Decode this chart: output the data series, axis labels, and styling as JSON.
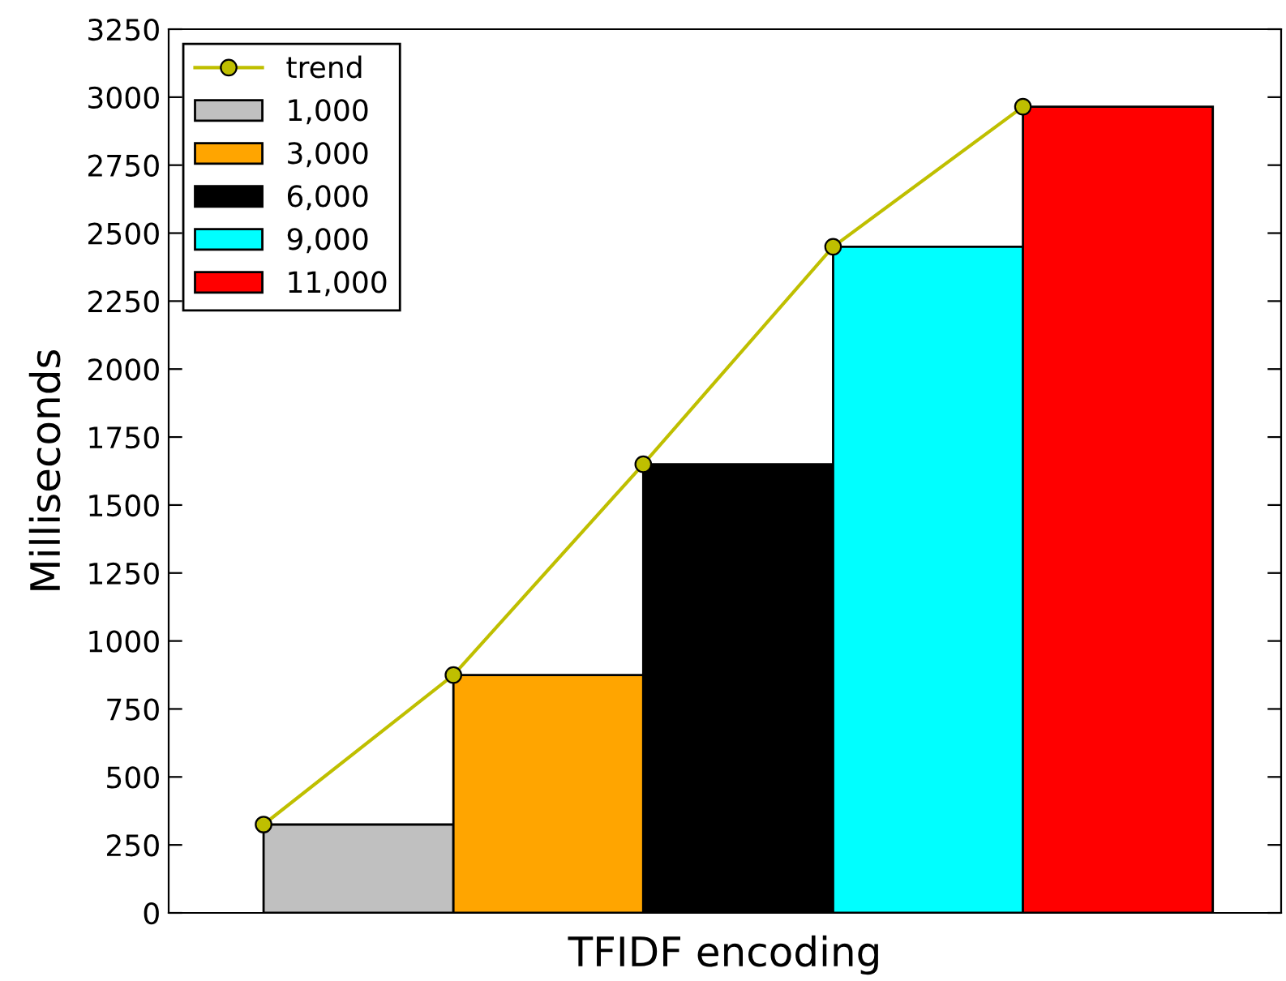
{
  "chart_data": {
    "type": "bar",
    "xlabel": "TFIDF encoding",
    "ylabel": "Milliseconds",
    "categories": [
      null,
      null,
      null,
      null,
      null
    ],
    "series": [
      {
        "name": "trend",
        "type": "line",
        "color": "#bfbf00",
        "marker": "circle",
        "values": [
          325,
          875,
          1650,
          2450,
          2965
        ]
      },
      {
        "name": "1,000",
        "color": "#c0c0c0",
        "values": [
          325,
          null,
          null,
          null,
          null
        ]
      },
      {
        "name": "3,000",
        "color": "#ffa500",
        "values": [
          null,
          875,
          null,
          null,
          null
        ]
      },
      {
        "name": "6,000",
        "color": "#000000",
        "values": [
          null,
          null,
          1650,
          null,
          null
        ]
      },
      {
        "name": "9,000",
        "color": "#00ffff",
        "values": [
          null,
          null,
          null,
          2450,
          null
        ]
      },
      {
        "name": "11,000",
        "color": "#ff0000",
        "values": [
          null,
          null,
          null,
          null,
          2965
        ]
      }
    ],
    "ylim": [
      0,
      3250
    ],
    "yticks": [
      0,
      250,
      500,
      750,
      1000,
      1250,
      1500,
      1750,
      2000,
      2250,
      2500,
      2750,
      3000,
      3250
    ],
    "tick_labels": "y",
    "legend": "top left",
    "grid": false
  }
}
